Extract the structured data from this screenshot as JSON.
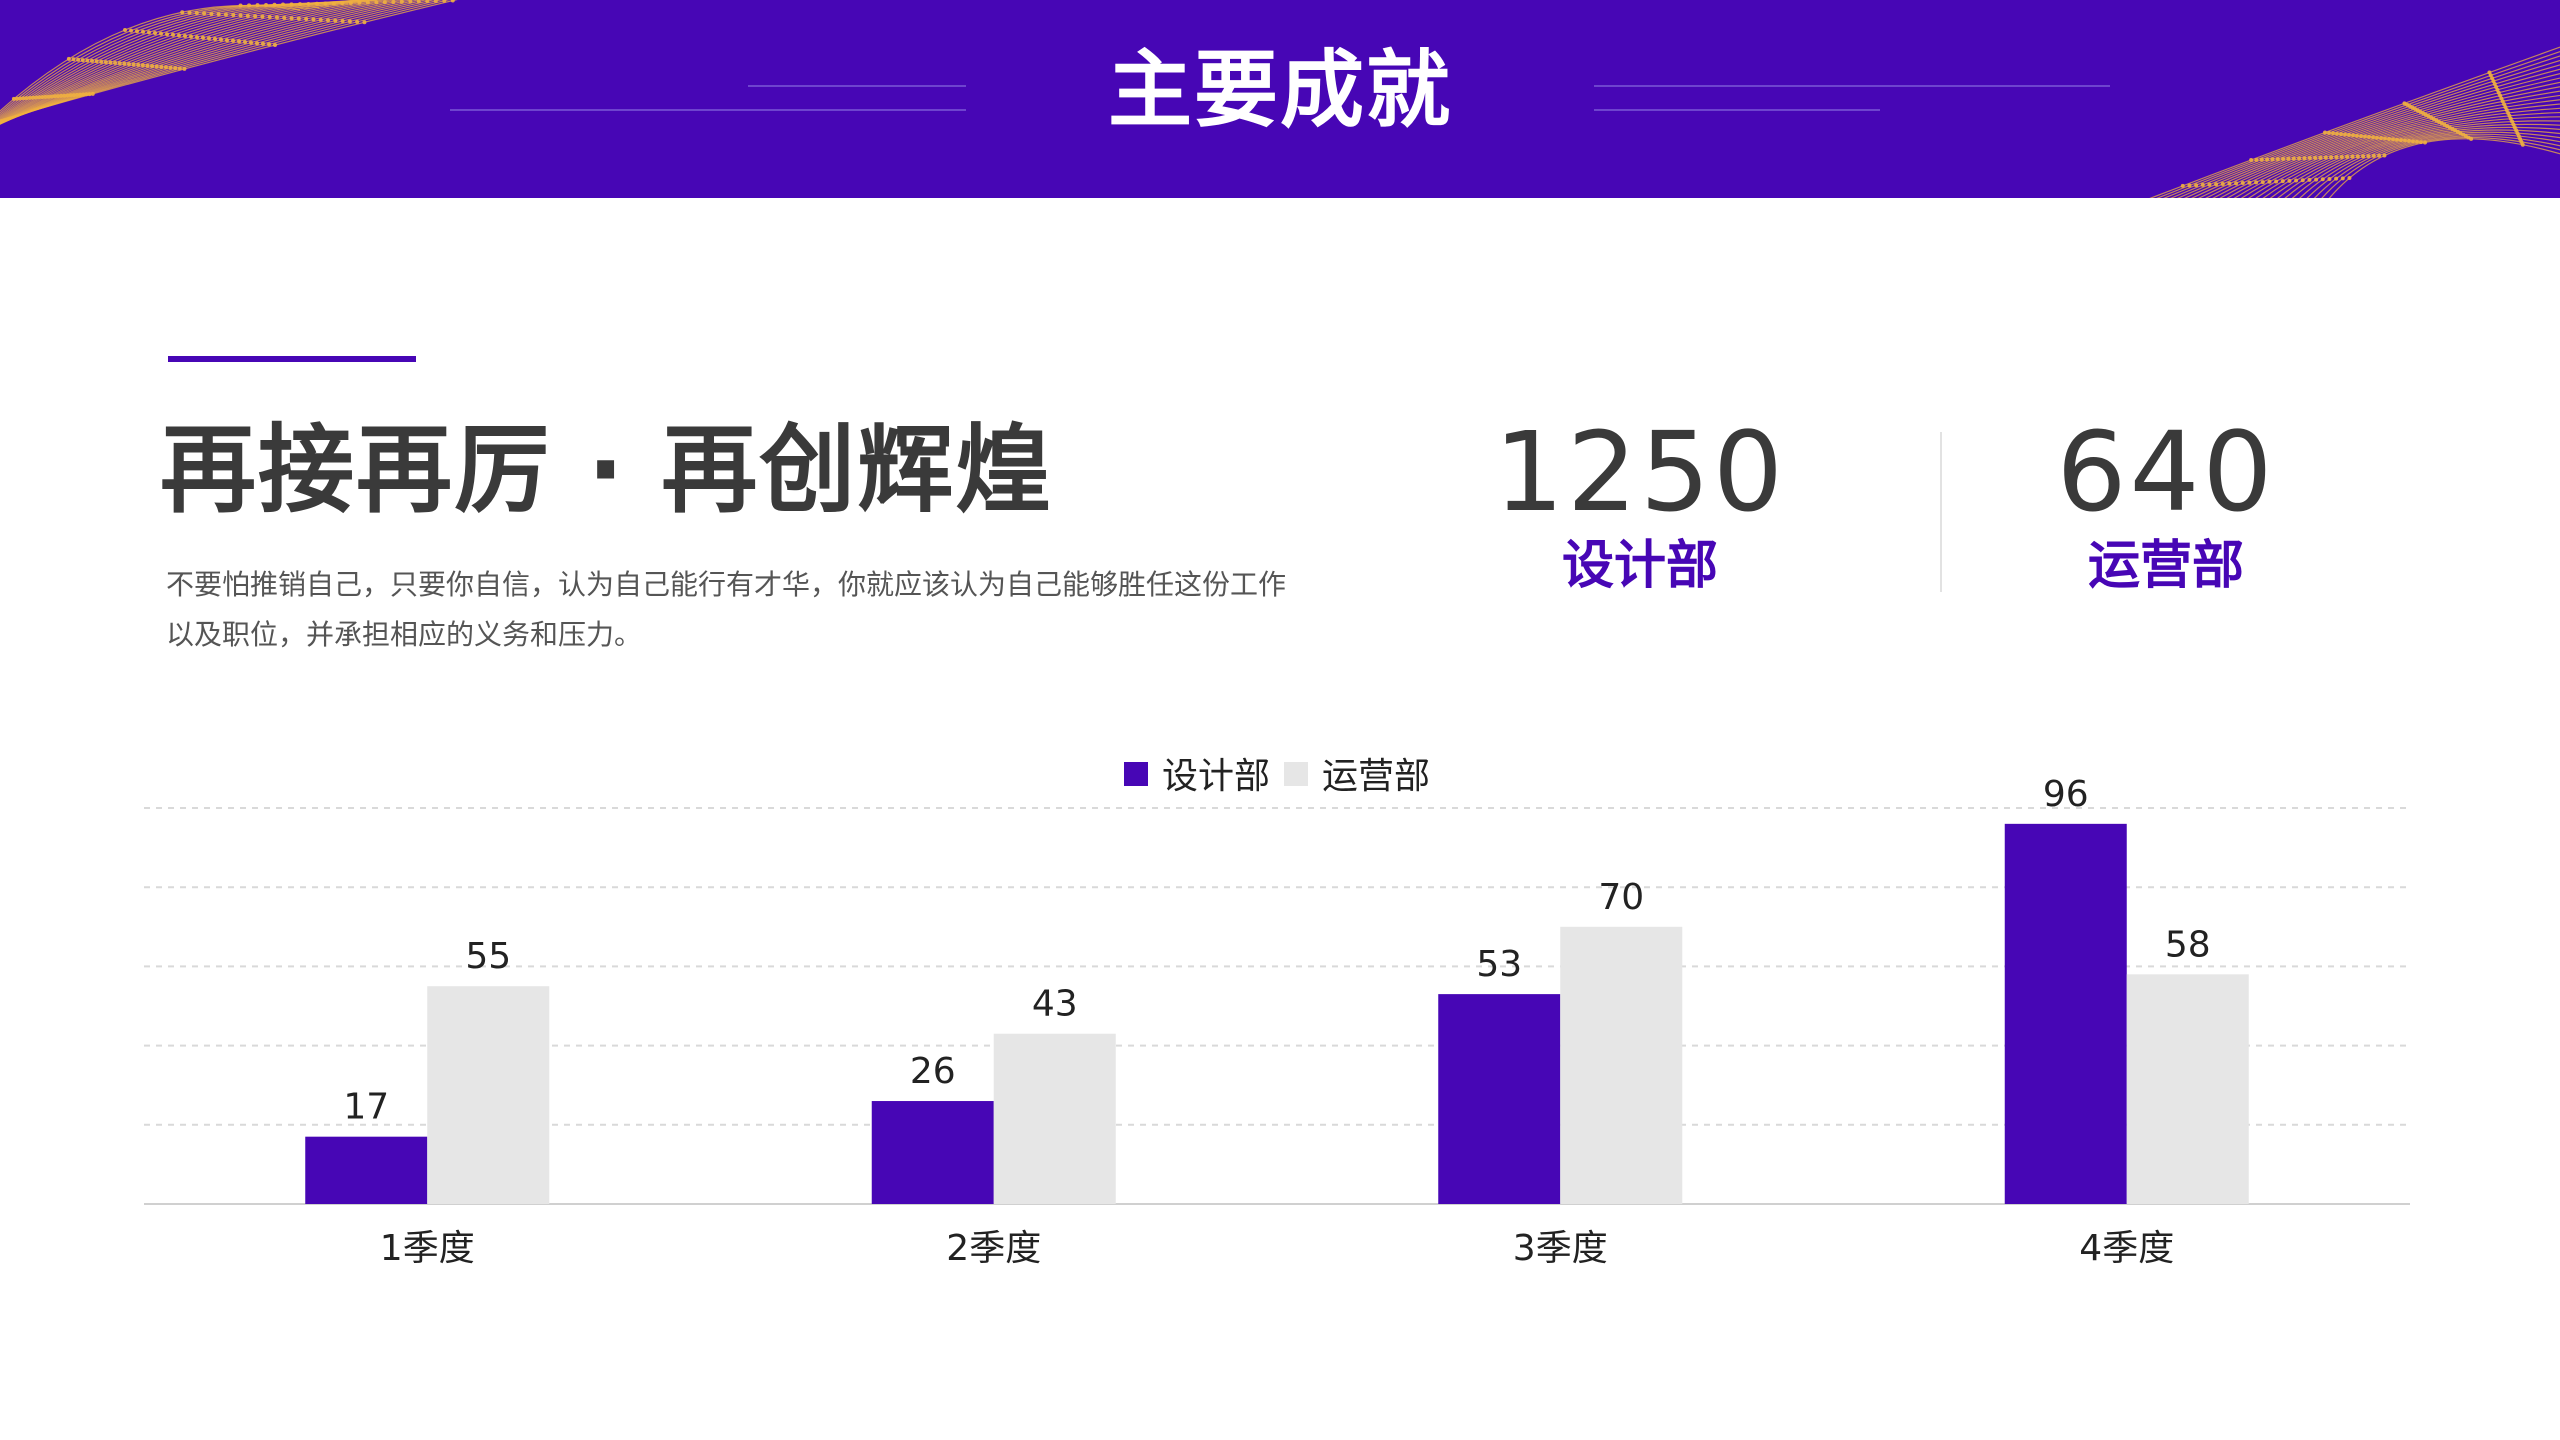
{
  "header": {
    "title": "主要成就"
  },
  "intro": {
    "headline": "再接再厉 · 再创辉煌",
    "description": "不要怕推销自己，只要你自信，认为自己能行有才华，你就应该认为自己能够胜任这份工作以及职位，并承担相应的义务和压力。"
  },
  "stats": [
    {
      "value": "1250",
      "label": "设计部"
    },
    {
      "value": "640",
      "label": "运营部"
    }
  ],
  "colors": {
    "primary": "#4706b5",
    "secondary": "#e6e6e6",
    "gold": "#f0b040"
  },
  "chart_data": {
    "type": "bar",
    "categories": [
      "1季度",
      "2季度",
      "3季度",
      "4季度"
    ],
    "series": [
      {
        "name": "设计部",
        "values": [
          17,
          26,
          53,
          96
        ],
        "color": "#4706b5"
      },
      {
        "name": "运营部",
        "values": [
          55,
          43,
          70,
          58
        ],
        "color": "#e6e6e6"
      }
    ],
    "ylim": [
      0,
      100
    ],
    "grid": true,
    "legend": "top-center",
    "data_labels": true
  }
}
